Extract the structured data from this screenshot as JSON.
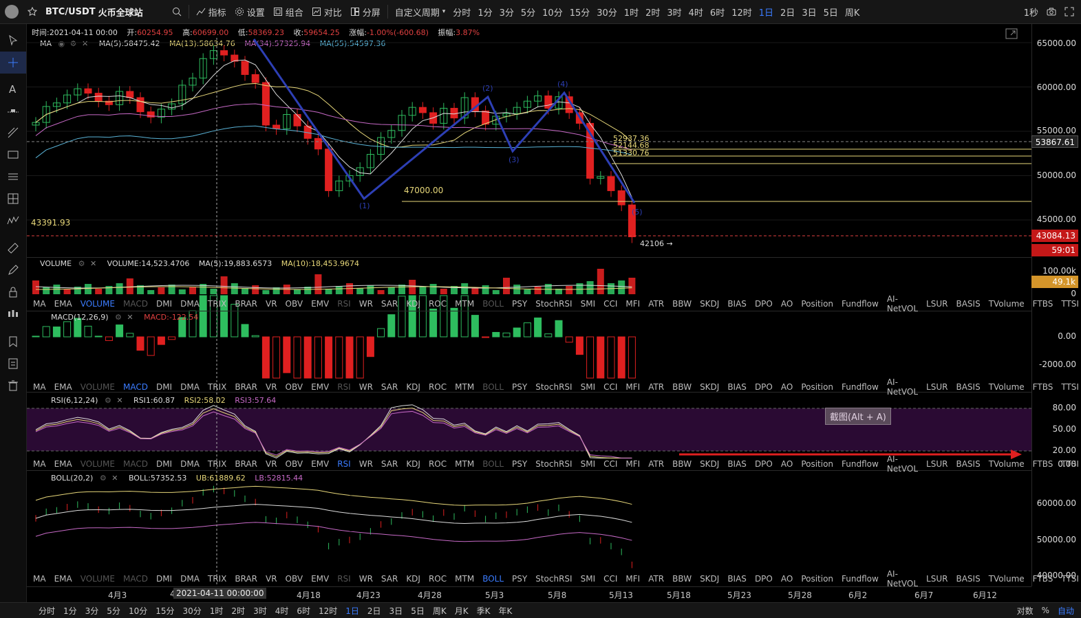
{
  "topbar": {
    "symbol": "BTC/USDT",
    "exchange": "火币全球站",
    "buttons": [
      "指标",
      "设置",
      "组合",
      "对比",
      "分屏"
    ],
    "custom_period": "自定义周期",
    "periods": [
      "分时",
      "1分",
      "3分",
      "5分",
      "10分",
      "15分",
      "30分",
      "1时",
      "2时",
      "3时",
      "4时",
      "6时",
      "12时",
      "1日",
      "2日",
      "3日",
      "5日",
      "周K"
    ],
    "active_period": "1日",
    "refresh": "1秒"
  },
  "info_line": {
    "time_label": "时间:",
    "time": "2021-04-11 00:00",
    "open_label": "开:",
    "open": "60254.95",
    "high_label": "高:",
    "high": "60699.00",
    "low_label": "低:",
    "low": "58369.23",
    "close_label": "收:",
    "close": "59654.25",
    "change_label": "涨幅:",
    "change": "-1.00%(-600.68)",
    "amp_label": "振幅:",
    "amp": "3.87%"
  },
  "ma_legend": {
    "name": "MA",
    "ma5": "MA(5):58475.42",
    "ma13": "MA(13):58634.76",
    "ma34": "MA(34):57325.94",
    "ma55": "MA(55):54597.36"
  },
  "price_axis": {
    "labels": [
      "65000.00",
      "60000.00",
      "55000.00",
      "50000.00",
      "45000.00"
    ],
    "dashed_price": "53867.61",
    "last_price": "43084.13",
    "countdown": "59:01"
  },
  "annotations": {
    "left_price": "43391.93",
    "level_47000": "47000.00",
    "fib1": "52937.36",
    "fib2": "52144.68",
    "fib3": "51330.76",
    "low_mark": "42106 →",
    "wave_labels": [
      "(1)",
      "(2)",
      "(3)",
      "(4)",
      "(5)"
    ]
  },
  "volume": {
    "name": "VOLUME",
    "value": "VOLUME:14,523.4706",
    "ma5": "MA(5):19,883.6573",
    "ma10": "MA(10):18,453.9674",
    "axis": [
      "100.00k",
      "0"
    ],
    "tag": "49.1k"
  },
  "indicator_tabs": [
    "MA",
    "EMA",
    "VOLUME",
    "MACD",
    "DMI",
    "DMA",
    "TRIX",
    "BRAR",
    "VR",
    "OBV",
    "EMV",
    "RSI",
    "WR",
    "SAR",
    "KDJ",
    "ROC",
    "MTM",
    "BOLL",
    "PSY",
    "StochRSI",
    "SMI",
    "CCI",
    "MFI",
    "ATR",
    "BBW",
    "SKDJ",
    "BIAS",
    "DPO",
    "AO",
    "Position",
    "Fundflow",
    "AI-NetVOL",
    "LSUR",
    "BASIS",
    "TVolume",
    "FTBS",
    "TTSI"
  ],
  "macd": {
    "name": "MACD(12,26,9)",
    "value": "MACD:-122.54",
    "axis": [
      "0.00",
      "-2000.00"
    ]
  },
  "rsi": {
    "name": "RSI(6,12,24)",
    "rsi1": "RSI1:60.87",
    "rsi2": "RSI2:58.02",
    "rsi3": "RSI3:57.64",
    "axis": [
      "80.00",
      "50.00",
      "20.00",
      "0.00"
    ],
    "tooltip": "截图(Alt + A)"
  },
  "boll": {
    "name": "BOLL(20,2)",
    "boll": "BOLL:57352.53",
    "ub": "UB:61889.62",
    "lb": "LB:52815.44",
    "axis": [
      "60000.00",
      "50000.00",
      "40000.00"
    ]
  },
  "xaxis": {
    "labels": [
      "4月3",
      "4",
      "4月18",
      "4月23",
      "4月28",
      "5月3",
      "5月8",
      "5月13",
      "5月18",
      "5月23",
      "5月28",
      "6月2",
      "6月7",
      "6月12"
    ],
    "crosshair": "2021-04-11 00:00:00"
  },
  "bottombar": {
    "periods": [
      "分时",
      "1分",
      "3分",
      "5分",
      "10分",
      "15分",
      "30分",
      "1时",
      "2时",
      "3时",
      "4时",
      "6时",
      "12时",
      "1日",
      "2日",
      "3日",
      "5日",
      "周K",
      "月K",
      "季K",
      "年K"
    ],
    "active": "1日",
    "right": [
      "对数",
      "%",
      "自动"
    ]
  },
  "colors": {
    "up": "#2ebd5f",
    "down": "#e02020",
    "accent": "#3b7cff",
    "wave": "#2d3fb5"
  }
}
